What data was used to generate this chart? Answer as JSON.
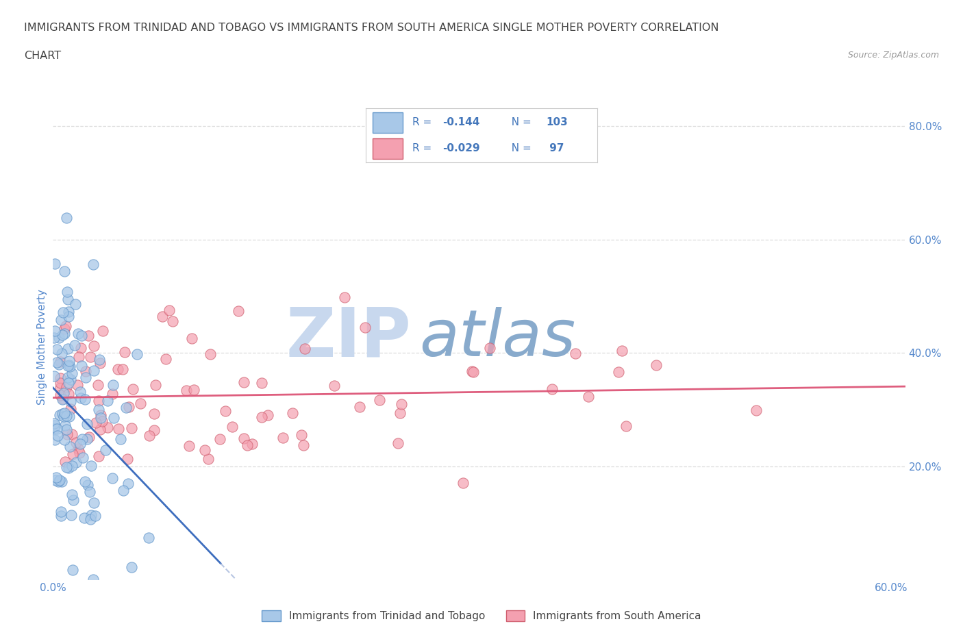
{
  "title_line1": "IMMIGRANTS FROM TRINIDAD AND TOBAGO VS IMMIGRANTS FROM SOUTH AMERICA SINGLE MOTHER POVERTY CORRELATION",
  "title_line2": "CHART",
  "source_text": "Source: ZipAtlas.com",
  "ylabel": "Single Mother Poverty",
  "xlim": [
    0,
    0.61
  ],
  "ylim": [
    0,
    0.82
  ],
  "xtick_positions": [
    0.0,
    0.1,
    0.2,
    0.3,
    0.4,
    0.5,
    0.6
  ],
  "xticklabels": [
    "0.0%",
    "",
    "",
    "",
    "",
    "",
    "60.0%"
  ],
  "ytick_right_positions": [
    0.2,
    0.4,
    0.6,
    0.8
  ],
  "ytick_right_labels": [
    "20.0%",
    "40.0%",
    "60.0%",
    "80.0%"
  ],
  "series1_color": "#a8c8e8",
  "series1_edgecolor": "#6699cc",
  "series2_color": "#f4a0b0",
  "series2_edgecolor": "#d06070",
  "series1_R": -0.144,
  "series1_N": 103,
  "series2_R": -0.029,
  "series2_N": 97,
  "legend1_label": "Immigrants from Trinidad and Tobago",
  "legend2_label": "Immigrants from South America",
  "trendline1_solid_color": "#3366bb",
  "trendline1_dash_color": "#aabbdd",
  "trendline2_color": "#dd5577",
  "watermark_ZIP_color": "#c8d8ee",
  "watermark_atlas_color": "#88aacc",
  "background_color": "#ffffff",
  "grid_color": "#dddddd",
  "title_color": "#444444",
  "axis_label_color": "#5588cc",
  "legend_R_color": "#4477bb",
  "legend_border_color": "#cccccc"
}
